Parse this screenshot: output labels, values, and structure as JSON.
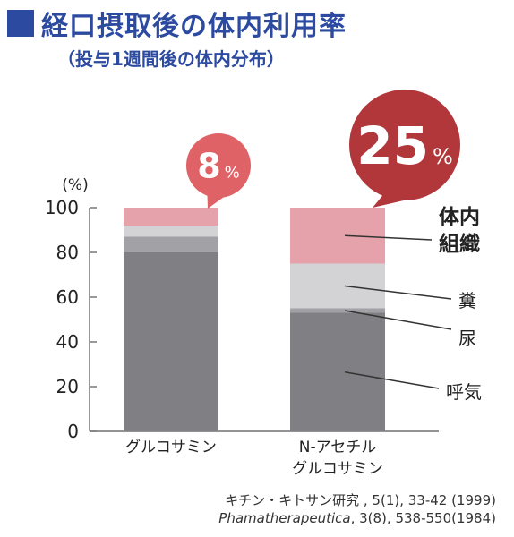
{
  "header": {
    "title": "経口摂取後の体内利用率",
    "subtitle": "（投与1週間後の体内分布）"
  },
  "chart_data": {
    "type": "bar",
    "stacked": true,
    "unit_label": "(%)",
    "ylim": [
      0,
      100
    ],
    "yticks": [
      0,
      20,
      40,
      60,
      80,
      100
    ],
    "categories": [
      "グルコサミン",
      "N-アセチル\nグルコサミン"
    ],
    "series": [
      {
        "name": "呼気",
        "values": [
          80,
          53
        ],
        "color": "#808084"
      },
      {
        "name": "尿",
        "values": [
          7,
          2
        ],
        "color": "#a2a2a6"
      },
      {
        "name": "糞",
        "values": [
          5,
          20
        ],
        "color": "#d3d3d5"
      },
      {
        "name": "体内組織",
        "values": [
          8,
          25
        ],
        "color": "#e6a2ab"
      }
    ],
    "callouts": [
      {
        "category_index": 0,
        "value": "8",
        "unit": "%",
        "color": "#df6266"
      },
      {
        "category_index": 1,
        "value": "25",
        "unit": "%",
        "color": "#b1373b"
      }
    ]
  },
  "citations": {
    "line1": "キチン・キトサン研究 , 5(1), 33-42 (1999)",
    "line2_italic": "Phamatherapeutica",
    "line2_rest": ", 3(8), 538-550(1984)"
  }
}
